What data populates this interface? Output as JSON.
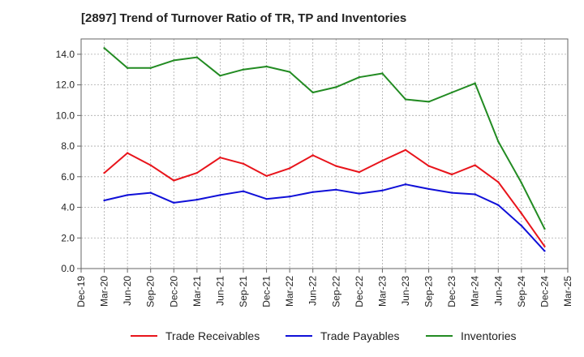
{
  "chart_data": {
    "type": "line",
    "title": "[2897]  Trend of Turnover Ratio of TR, TP and Inventories",
    "xlabel": "",
    "ylabel": "",
    "x": [
      "Dec-19",
      "Mar-20",
      "Jun-20",
      "Sep-20",
      "Dec-20",
      "Mar-21",
      "Jun-21",
      "Sep-21",
      "Dec-21",
      "Mar-22",
      "Jun-22",
      "Sep-22",
      "Dec-22",
      "Mar-23",
      "Jun-23",
      "Sep-23",
      "Dec-23",
      "Mar-24",
      "Jun-24",
      "Sep-24",
      "Dec-24",
      "Mar-25"
    ],
    "ylim": [
      0,
      15
    ],
    "yticks": [
      "0.0",
      "2.0",
      "4.0",
      "6.0",
      "8.0",
      "10.0",
      "12.0",
      "14.0"
    ],
    "grid": true,
    "legend_position": "bottom",
    "series": [
      {
        "name": "Trade Receivables",
        "color": "#e8141b",
        "values": [
          null,
          6.25,
          7.55,
          6.75,
          5.75,
          6.25,
          7.25,
          6.85,
          6.05,
          6.55,
          7.4,
          6.7,
          6.3,
          7.05,
          7.75,
          6.7,
          6.15,
          6.75,
          5.65,
          3.6,
          1.45,
          null
        ]
      },
      {
        "name": "Trade Payables",
        "color": "#1010d8",
        "values": [
          null,
          4.45,
          4.8,
          4.95,
          4.3,
          4.5,
          4.8,
          5.05,
          4.55,
          4.7,
          5.0,
          5.15,
          4.9,
          5.1,
          5.5,
          5.2,
          4.95,
          4.85,
          4.15,
          2.8,
          1.15,
          null
        ]
      },
      {
        "name": "Inventories",
        "color": "#228b22",
        "values": [
          null,
          14.4,
          13.1,
          13.1,
          13.6,
          13.8,
          12.6,
          13.0,
          13.2,
          12.85,
          11.5,
          11.85,
          12.5,
          12.75,
          11.05,
          10.9,
          11.5,
          12.1,
          8.3,
          5.6,
          2.6,
          null
        ]
      }
    ]
  }
}
